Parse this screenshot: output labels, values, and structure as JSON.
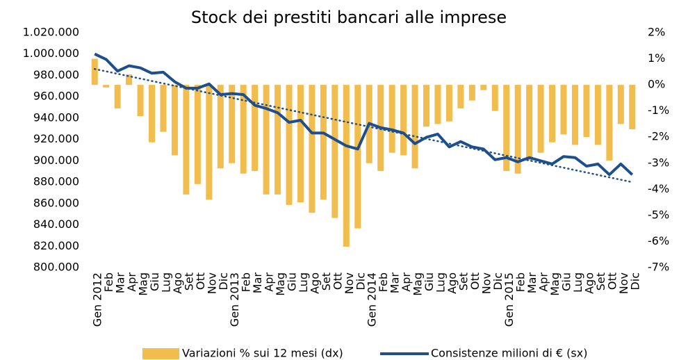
{
  "chart_data": {
    "type": "bar-line",
    "title": "Stock dei prestiti bancari alle imprese",
    "categories": [
      "Gen 2012",
      "Feb",
      "Mar",
      "Apr",
      "Mag",
      "Giu",
      "Lug",
      "Ago",
      "Set",
      "Ott",
      "Nov",
      "Dic",
      "Gen 2013",
      "Feb",
      "Mar",
      "Apr",
      "Mag",
      "Giu",
      "Lug",
      "Ago",
      "Set",
      "Ott",
      "Nov",
      "Dic",
      "Gen 2014",
      "Feb",
      "Mar",
      "Apr",
      "Mag",
      "Giu",
      "Lug",
      "Ago",
      "Set",
      "Ott",
      "Nov",
      "Dic",
      "Gen 2015",
      "Feb",
      "Mar",
      "Apr",
      "Mag",
      "Giu",
      "Lug",
      "Ago",
      "Set",
      "Ott",
      "Nov",
      "Dic"
    ],
    "series": [
      {
        "name": "Variazioni % sui 12 mesi (dx)",
        "type": "bar",
        "axis": "y2",
        "color": "#f2bd4f",
        "values": [
          1.0,
          -0.1,
          -0.9,
          0.4,
          -1.2,
          -2.2,
          -1.8,
          -2.7,
          -4.2,
          -3.8,
          -4.4,
          -3.2,
          -3.0,
          -3.4,
          -3.3,
          -4.2,
          -4.2,
          -4.6,
          -4.5,
          -4.9,
          -4.4,
          -5.1,
          -6.2,
          -5.5,
          -3.0,
          -3.3,
          -2.6,
          -2.7,
          -3.2,
          -1.6,
          -1.5,
          -1.4,
          -0.9,
          -0.6,
          -0.2,
          -1.0,
          -3.3,
          -3.4,
          -2.9,
          -2.6,
          -2.2,
          -1.9,
          -2.3,
          -2.0,
          -2.3,
          -2.9,
          -1.5,
          -1.7
        ]
      },
      {
        "name": "Consistenze milioni di € (sx)",
        "type": "line",
        "color": "#1f4e8c",
        "values": [
          1000000,
          995000,
          984000,
          989000,
          987000,
          982000,
          983000,
          974000,
          968000,
          968000,
          972000,
          962000,
          963000,
          962000,
          952000,
          949000,
          945000,
          936000,
          938000,
          926000,
          926000,
          920000,
          914000,
          911000,
          935000,
          931000,
          929000,
          926000,
          916000,
          922000,
          925000,
          913000,
          918000,
          913000,
          911000,
          901000,
          903000,
          899000,
          903000,
          900000,
          897000,
          904000,
          903000,
          895000,
          897000,
          887000,
          897000,
          887000
        ]
      }
    ],
    "trendline": {
      "start": 986000,
      "end": 880000,
      "color": "#1f4e8c"
    },
    "ylim": [
      800000,
      1020000
    ],
    "yticks": [
      {
        "value": 800000,
        "label": "800.000"
      },
      {
        "value": 820000,
        "label": "820.000"
      },
      {
        "value": 840000,
        "label": "840.000"
      },
      {
        "value": 860000,
        "label": "860.000"
      },
      {
        "value": 880000,
        "label": "880.000"
      },
      {
        "value": 900000,
        "label": "900.000"
      },
      {
        "value": 920000,
        "label": "920.000"
      },
      {
        "value": 940000,
        "label": "940.000"
      },
      {
        "value": 960000,
        "label": "960.000"
      },
      {
        "value": 980000,
        "label": "980.000"
      },
      {
        "value": 1000000,
        "label": "1.000.000"
      },
      {
        "value": 1020000,
        "label": "1.020.000"
      }
    ],
    "y2lim": [
      -7,
      2
    ],
    "y2ticks": [
      {
        "value": -7,
        "label": "-7%"
      },
      {
        "value": -6,
        "label": "-6%"
      },
      {
        "value": -5,
        "label": "-5%"
      },
      {
        "value": -4,
        "label": "-4%"
      },
      {
        "value": -3,
        "label": "-3%"
      },
      {
        "value": -2,
        "label": "-2%"
      },
      {
        "value": -1,
        "label": "-1%"
      },
      {
        "value": 0,
        "label": "0%"
      },
      {
        "value": 1,
        "label": "1%"
      },
      {
        "value": 2,
        "label": "2%"
      }
    ]
  }
}
